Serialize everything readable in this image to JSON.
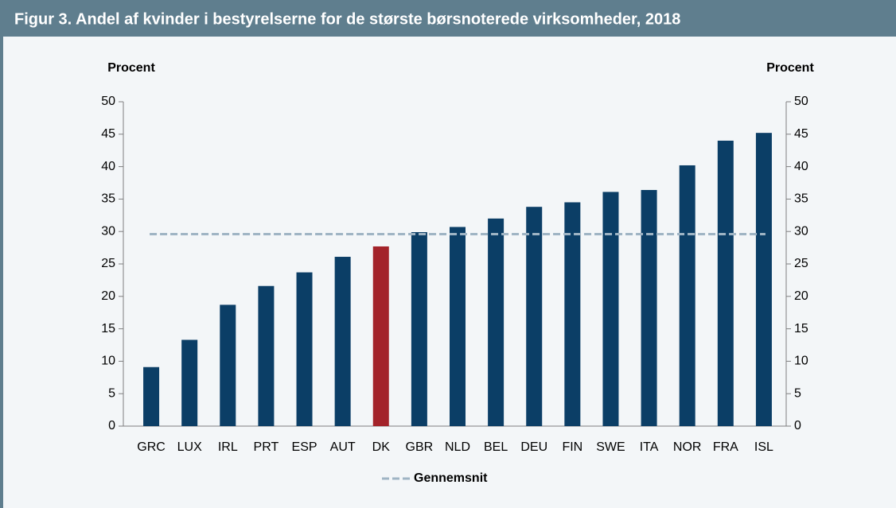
{
  "chart_data": {
    "type": "bar",
    "title": "Figur 3. Andel af kvinder i bestyrelserne for de største børsnoterede virksomheder, 2018",
    "y_label": "Procent",
    "y2_label": "Procent",
    "categories": [
      "GRC",
      "LUX",
      "IRL",
      "PRT",
      "ESP",
      "AUT",
      "DK",
      "GBR",
      "NLD",
      "BEL",
      "DEU",
      "FIN",
      "SWE",
      "ITA",
      "NOR",
      "FRA",
      "ISL"
    ],
    "values": [
      9.1,
      13.3,
      18.7,
      21.6,
      23.7,
      26.1,
      27.7,
      29.9,
      30.7,
      32.0,
      33.8,
      34.5,
      36.1,
      36.4,
      40.2,
      44.0,
      45.2
    ],
    "colors": [
      "#0b3e66",
      "#0b3e66",
      "#0b3e66",
      "#0b3e66",
      "#0b3e66",
      "#0b3e66",
      "#a3232a",
      "#0b3e66",
      "#0b3e66",
      "#0b3e66",
      "#0b3e66",
      "#0b3e66",
      "#0b3e66",
      "#0b3e66",
      "#0b3e66",
      "#0b3e66",
      "#0b3e66"
    ],
    "reference_line": {
      "name": "Gennemsnit",
      "value": 29.6,
      "color": "#9fb4c4",
      "style": "dashed"
    },
    "ylim": [
      0,
      50
    ],
    "yticks": [
      0,
      5,
      10,
      15,
      20,
      25,
      30,
      35,
      40,
      45,
      50
    ],
    "y2lim": [
      0,
      50
    ],
    "y2ticks": [
      0,
      5,
      10,
      15,
      20,
      25,
      30,
      35,
      40,
      45,
      50
    ],
    "grid": false,
    "legend": "bottom"
  }
}
